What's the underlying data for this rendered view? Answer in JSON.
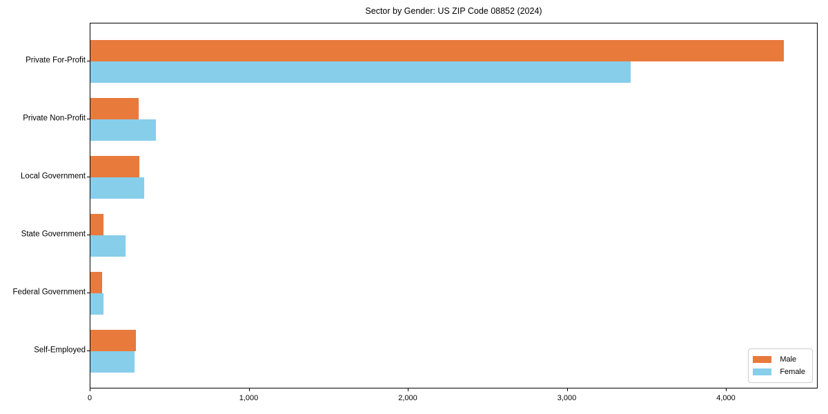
{
  "figure": {
    "title": "Sector by Gender: US ZIP Code 08852 (2024)"
  },
  "chart_data": {
    "type": "bar",
    "orientation": "horizontal",
    "title": "Sector by Gender: US ZIP Code 08852 (2024)",
    "xlabel": "",
    "ylabel": "",
    "grid": false,
    "xlim": [
      0,
      4577
    ],
    "categories": [
      "Private For-Profit",
      "Private Non-Profit",
      "Local Government",
      "State Government",
      "Federal Government",
      "Self-Employed"
    ],
    "series": [
      {
        "name": "Male",
        "color": "#E87A3C",
        "values": [
          4360,
          304,
          307,
          82,
          74,
          286
        ]
      },
      {
        "name": "Female",
        "color": "#87CEEB",
        "values": [
          3397,
          412,
          340,
          221,
          81,
          277
        ]
      }
    ],
    "x_ticks": [
      {
        "value": 0,
        "label": "0"
      },
      {
        "value": 1000,
        "label": "1,000"
      },
      {
        "value": 2000,
        "label": "2,000"
      },
      {
        "value": 3000,
        "label": "3,000"
      },
      {
        "value": 4000,
        "label": "4,000"
      }
    ],
    "legend": {
      "position": "lower right",
      "entries": [
        "Male",
        "Female"
      ]
    }
  }
}
